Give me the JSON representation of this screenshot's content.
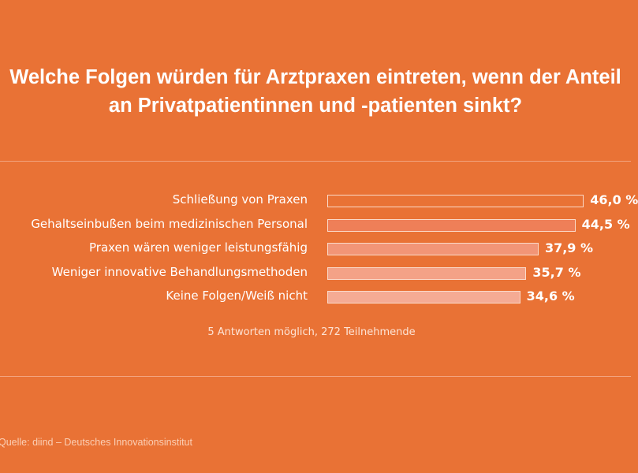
{
  "chart_data": {
    "type": "bar",
    "orientation": "horizontal",
    "title": "Welche Folgen würden für Arztpraxen eintreten, wenn der Anteil an Privatpatientinnen und -patienten sinkt?",
    "categories": [
      "Schließung von Praxen",
      "Gehaltseinbußen beim medizinischen Personal",
      "Praxen wären weniger leistungsfähig",
      "Weniger innovative Behandlungsmethoden",
      "Keine Folgen/Weiß nicht"
    ],
    "values": [
      46.0,
      44.5,
      37.9,
      35.7,
      34.6
    ],
    "value_labels": [
      "46,0 %",
      "44,5 %",
      "37,9 %",
      "35,7 %",
      "34,6 %"
    ],
    "bar_colors": [
      "#e97235",
      "#ef7f58",
      "#f29577",
      "#f4a287",
      "#f5ab94"
    ],
    "note": "5 Antworten möglich, 272 Teilnehmende",
    "source": "Quelle: diind – Deutsches Innovationsinstitut",
    "grid": false
  },
  "colors": {
    "background": "#e97235",
    "text": "#ffffff"
  }
}
